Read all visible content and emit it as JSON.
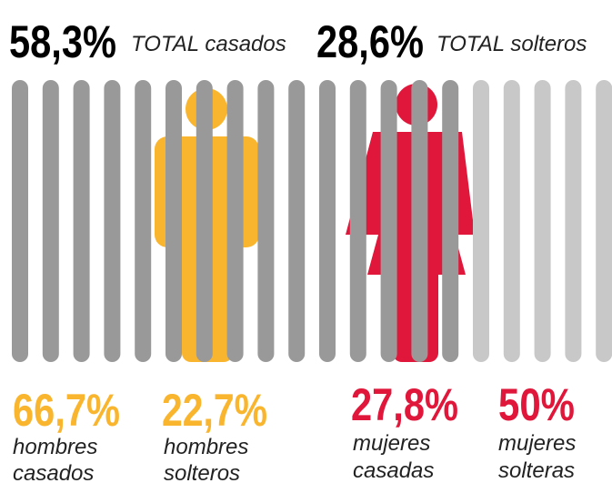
{
  "header": [
    {
      "value": "58,3%",
      "label": "TOTAL casados"
    },
    {
      "value": "28,6%",
      "label": "TOTAL solteros"
    }
  ],
  "stats": [
    {
      "value": "66,7%",
      "label": [
        "hombres",
        "casados"
      ]
    },
    {
      "value": "22,7%",
      "label": [
        "hombres",
        "solteros"
      ]
    },
    {
      "value": "27,8%",
      "label": [
        "mujeres",
        "casadas"
      ]
    },
    {
      "value": "50%",
      "label": [
        "mujeres",
        "solteras"
      ]
    }
  ]
}
